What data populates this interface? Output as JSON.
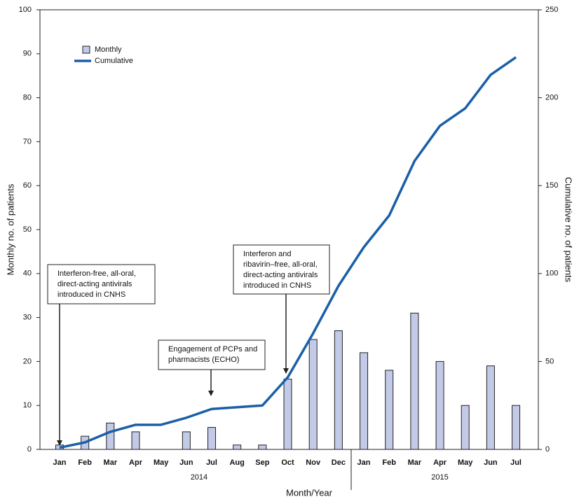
{
  "chart_data": {
    "type": "bar-line",
    "x_label": "Month/Year",
    "y_label": "Monthly no. of patients",
    "y2_label": "Cumulative no. of patients",
    "groups": [
      {
        "name": "2014",
        "categories": [
          "Jan",
          "Feb",
          "Mar",
          "Apr",
          "May",
          "Jun",
          "Jul",
          "Aug",
          "Sep",
          "Oct",
          "Nov",
          "Dec"
        ]
      },
      {
        "name": "2015",
        "categories": [
          "Jan",
          "Feb",
          "Mar",
          "Apr",
          "May",
          "Jun",
          "Jul"
        ]
      }
    ],
    "series": [
      {
        "name": "Monthly",
        "type": "bar",
        "color": "#c3cae8",
        "values": [
          1,
          3,
          6,
          4,
          0,
          4,
          5,
          1,
          1,
          16,
          25,
          27,
          22,
          18,
          31,
          20,
          10,
          19,
          10
        ]
      },
      {
        "name": "Cumulative",
        "type": "line",
        "axis": "y2",
        "color": "#1a5fa8",
        "values": [
          1,
          4,
          10,
          14,
          14,
          18,
          23,
          24,
          25,
          41,
          66,
          93,
          115,
          133,
          164,
          184,
          194,
          213,
          223
        ]
      }
    ],
    "ylim": [
      0,
      100
    ],
    "yticks": [
      0,
      10,
      20,
      30,
      40,
      50,
      60,
      70,
      80,
      90,
      100
    ],
    "y2lim": [
      0,
      250
    ],
    "y2ticks": [
      0,
      50,
      100,
      150,
      200,
      250
    ],
    "legend": "upper left",
    "annotations": [
      {
        "lines": [
          "Interferon-free, all-oral,",
          "direct-acting antivirals",
          "introduced in CNHS"
        ]
      },
      {
        "lines": [
          "Engagement of  PCPs and",
          "pharmacists (ECHO)"
        ]
      },
      {
        "lines": [
          "Interferon and",
          "ribavirin–free, all-oral,",
          "direct-acting antivirals",
          "introduced in CNHS"
        ]
      }
    ]
  }
}
